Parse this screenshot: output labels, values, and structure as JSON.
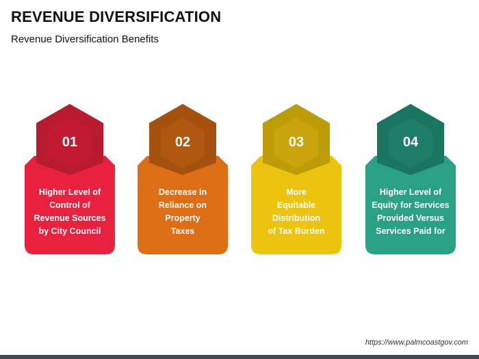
{
  "header": {
    "title": "REVENUE DIVERSIFICATION",
    "subtitle": "Revenue Diversification Benefits"
  },
  "cards": [
    {
      "number": "01",
      "text": "Higher Level of\nControl of\nRevenue Sources\nby City Council",
      "colors": {
        "body": "#e8223e",
        "dark": "#b81a30",
        "hex": "#c21a33"
      }
    },
    {
      "number": "02",
      "text": "Decrease in\nReliance on\nProperty\nTaxes",
      "colors": {
        "body": "#dd6e16",
        "dark": "#a4500f",
        "hex": "#b05710"
      }
    },
    {
      "number": "03",
      "text": "More\nEquitable\nDistribution\nof Tax Burden",
      "colors": {
        "body": "#ecc30f",
        "dark": "#bd9c0a",
        "hex": "#c9a40b"
      }
    },
    {
      "number": "04",
      "text": "Higher Level of\nEquity for Services\nProvided Versus\nServices Paid for",
      "colors": {
        "body": "#2aa184",
        "dark": "#1a7560",
        "hex": "#1f7e68"
      }
    }
  ],
  "footer": {
    "source": "https://www.palmcoastgov.com"
  }
}
